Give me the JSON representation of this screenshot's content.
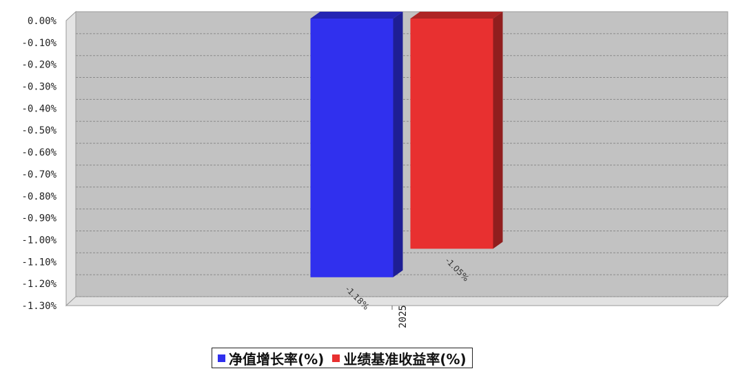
{
  "chart_data": {
    "type": "bar",
    "categories": [
      "2025"
    ],
    "series": [
      {
        "name": "净值增长率(%)",
        "values": [
          -1.18
        ],
        "color": "#3030ee",
        "label": "-1.18%"
      },
      {
        "name": "业绩基准收益率(%)",
        "values": [
          -1.05
        ],
        "color": "#e83030",
        "label": "-1.05%"
      }
    ],
    "ylim": [
      -1.3,
      0
    ],
    "yticks": [
      "0.00%",
      "-0.10%",
      "-0.20%",
      "-0.30%",
      "-0.40%",
      "-0.50%",
      "-0.60%",
      "-0.70%",
      "-0.80%",
      "-0.90%",
      "-1.00%",
      "-1.10%",
      "-1.20%",
      "-1.30%"
    ],
    "grid": true,
    "legend_position": "bottom-center",
    "style": "3d"
  }
}
